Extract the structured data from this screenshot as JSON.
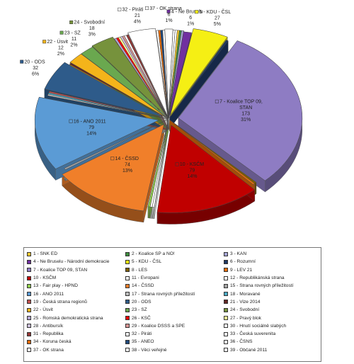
{
  "chart_data": {
    "type": "pie",
    "style": "exploded-3d",
    "slices": [
      {
        "label": "1 - SNK ED",
        "color": "#f2c830"
      },
      {
        "label": "2 - Koalice SP a NO!",
        "color": "#3e8e3e"
      },
      {
        "label": "3 - KAN",
        "color": "#a6a6d6"
      },
      {
        "label": "4 - Ne Bruselu - Národní demokracie",
        "color": "#7030a0",
        "value": 6,
        "percent": 1,
        "display": [
          "4 - Ne Bruselu",
          "6",
          "1%"
        ]
      },
      {
        "label": "5 - KDU - ČSL",
        "color": "#f5ef14",
        "value": 27,
        "percent": 5,
        "display": [
          "5 - KDU - ČSL",
          "27",
          "5%"
        ]
      },
      {
        "label": "6 - Rozumní",
        "color": "#1f3864"
      },
      {
        "label": "7 - Koalice TOP 09, STAN",
        "color": "#8e7cc3",
        "value": 173,
        "percent": 31,
        "display": [
          "7 - Koalice TOP 09,",
          "STAN",
          "173",
          "31%"
        ]
      },
      {
        "label": "8 - LES",
        "color": "#7f6000"
      },
      {
        "label": "9 - LEV 21",
        "color": "#e36c0a"
      },
      {
        "label": "10 - KSČM",
        "color": "#c00000",
        "value": 79,
        "percent": 14,
        "display": [
          "10 - KSČM",
          "79",
          "14%"
        ]
      },
      {
        "label": "11 - Evropani",
        "color": "#ffffff"
      },
      {
        "label": "12 - Republikánská strana",
        "color": "#ffffff"
      },
      {
        "label": "13 - Fair play - HPND",
        "color": "#92d050"
      },
      {
        "label": "14 - ČSSD",
        "color": "#f07f2a",
        "value": 74,
        "percent": 13,
        "display": [
          "14 - ČSSD",
          "74",
          "13%"
        ]
      },
      {
        "label": "15 - Strana rovných příležitostí",
        "color": "#a5a5a5"
      },
      {
        "label": "16 - ANO 2011",
        "color": "#5b9bd5",
        "value": 79,
        "percent": 14,
        "display": [
          "16 - ANO 2011",
          "79",
          "14%"
        ]
      },
      {
        "label": "17 - Strana rovných příležitostí",
        "color": "#bfbfbf"
      },
      {
        "label": "18 - Moravané",
        "color": "#4bacc6"
      },
      {
        "label": "19 - Česká strana regionů",
        "color": "#c0504d"
      },
      {
        "label": "20 - ODS",
        "color": "#2e5b8a",
        "value": 32,
        "percent": 6,
        "display": [
          "20 - ODS",
          "32",
          "6%"
        ]
      },
      {
        "label": "21 - Vize 2014",
        "color": "#632523"
      },
      {
        "label": "22 - Úsvit",
        "color": "#f4b41a",
        "value": 12,
        "percent": 2,
        "display": [
          "22 - Úsvit",
          "12",
          "2%"
        ]
      },
      {
        "label": "23 - SZ",
        "color": "#6aa84f",
        "value": 11,
        "percent": 2,
        "display": [
          "23 - SZ",
          "11",
          "2%"
        ]
      },
      {
        "label": "24 - Svobodní",
        "color": "#76923c",
        "value": 18,
        "percent": 3,
        "display": [
          "24 - Svobodní",
          "18",
          "3%"
        ]
      },
      {
        "label": "25 - Romská demokratická strana",
        "color": "#b4a7d6"
      },
      {
        "label": "26 - KSČ",
        "color": "#ff0000"
      },
      {
        "label": "27 - Pravý blok",
        "color": "#ffff99"
      },
      {
        "label": "28 - Antibursík",
        "color": "#ccc0da"
      },
      {
        "label": "29 - Koalice DSSS a SPE",
        "color": "#d99694"
      },
      {
        "label": "30 - Hnutí sociálně slabých",
        "color": "#ffffff"
      },
      {
        "label": "31 - Republika",
        "color": "#953735"
      },
      {
        "label": "32 - Piráti",
        "color": "#ffffff",
        "value": 21,
        "percent": 4,
        "display": [
          "32 - Piráti",
          "21",
          "4%"
        ]
      },
      {
        "label": "33 - Česká suverenita",
        "color": "#ffffff"
      },
      {
        "label": "34 - Koruna česká",
        "color": "#e26b0a"
      },
      {
        "label": "35 - ANEO",
        "color": "#1f497d"
      },
      {
        "label": "36 - ČSNS",
        "color": "#ffffff"
      },
      {
        "label": "37 - OK strana",
        "color": "#ffffff",
        "value": 6,
        "percent": 1,
        "display": [
          "37 - OK strana",
          "6",
          "1%"
        ]
      },
      {
        "label": "38 - Věci veřejné",
        "color": "#ffffff"
      },
      {
        "label": "39 - Občané 2011",
        "color": "#ffffff"
      }
    ],
    "legend_placement": "bottom"
  }
}
